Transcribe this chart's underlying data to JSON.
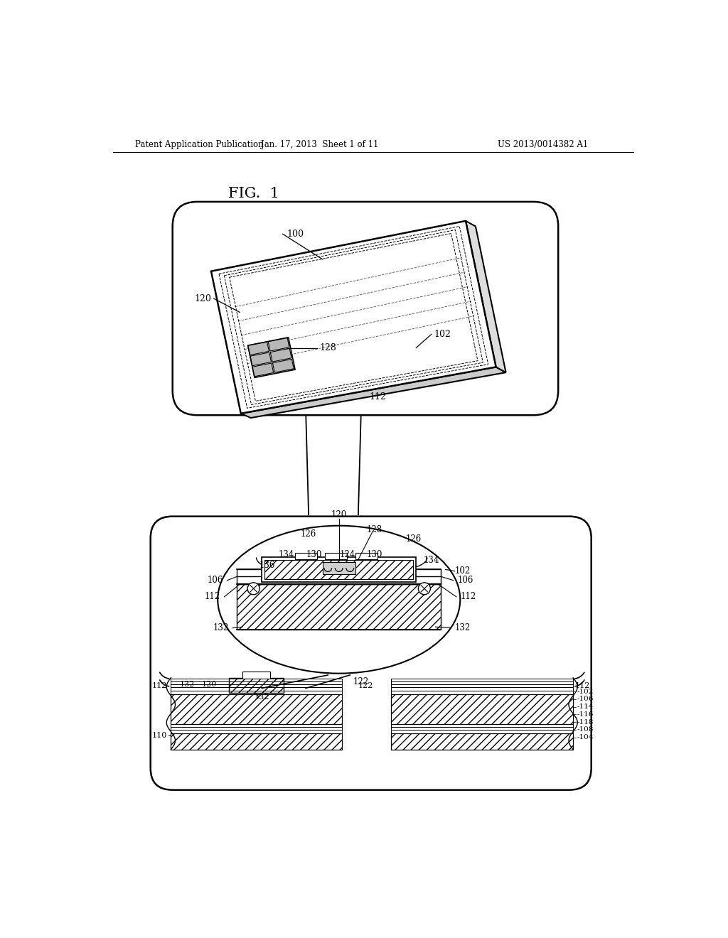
{
  "title_left": "Patent Application Publication",
  "title_mid": "Jan. 17, 2013  Sheet 1 of 11",
  "title_right": "US 2013/0014382 A1",
  "fig_label": "FIG. 1",
  "background_color": "#ffffff",
  "line_color": "#000000",
  "fig_width": 10.24,
  "fig_height": 13.2
}
